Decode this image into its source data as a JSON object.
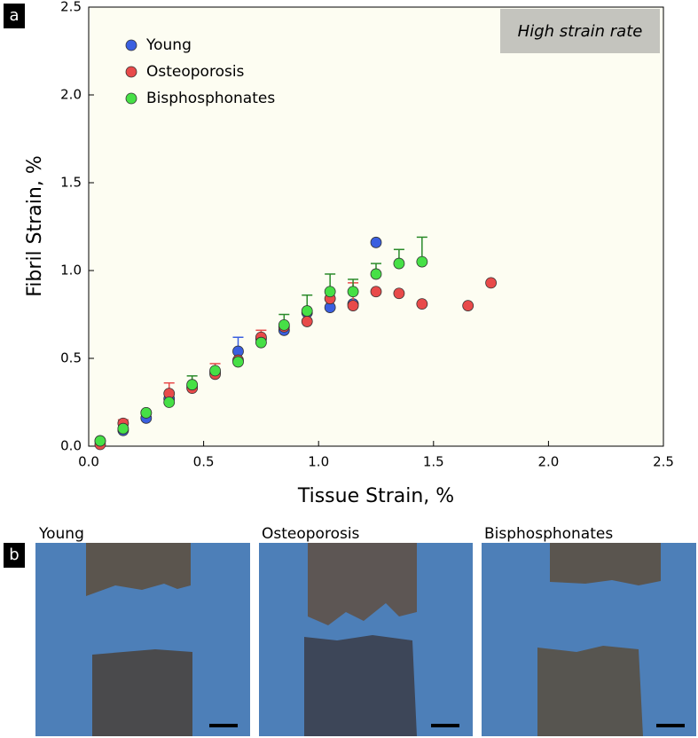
{
  "chart_data": {
    "type": "scatter",
    "panel_label": "a",
    "annotation": "High strain rate",
    "x_label": "Tissue Strain, %",
    "y_label": "Fibril Strain, %",
    "xlim": [
      0,
      2.5
    ],
    "ylim": [
      0,
      2.5
    ],
    "xticks": [
      {
        "value": 0,
        "label": "0.0"
      },
      0.5,
      {
        "value": 1,
        "label": "1.0"
      },
      1.5,
      {
        "value": 2,
        "label": "2.0"
      },
      2.5
    ],
    "yticks": [
      {
        "value": 0,
        "label": "0.0"
      },
      0.5,
      {
        "value": 1,
        "label": "1.0"
      },
      1.5,
      {
        "value": 2,
        "label": "2.0"
      },
      2.5
    ],
    "legend": "top-left",
    "series": [
      {
        "name": "Young",
        "color": "#3a5fe0",
        "x": [
          0.05,
          0.15,
          0.25,
          0.35,
          0.45,
          0.55,
          0.65,
          0.75,
          0.85,
          0.95,
          1.05,
          1.15,
          1.25
        ],
        "values": [
          0.03,
          0.09,
          0.16,
          0.27,
          0.34,
          0.42,
          0.54,
          0.61,
          0.66,
          0.76,
          0.79,
          0.81,
          1.16
        ],
        "errors": [
          null,
          null,
          null,
          null,
          null,
          null,
          0.08,
          null,
          null,
          null,
          null,
          null,
          null
        ]
      },
      {
        "name": "Osteoporosis",
        "color": "#e84a4a",
        "x": [
          0.05,
          0.15,
          0.25,
          0.35,
          0.45,
          0.55,
          0.65,
          0.75,
          0.85,
          0.95,
          1.05,
          1.15,
          1.25,
          1.35,
          1.45,
          1.65,
          1.75
        ],
        "values": [
          0.01,
          0.13,
          0.19,
          0.3,
          0.33,
          0.41,
          0.49,
          0.62,
          0.68,
          0.71,
          0.84,
          0.8,
          0.88,
          0.87,
          0.81,
          0.8,
          0.93
        ],
        "errors": [
          null,
          0.02,
          null,
          0.06,
          null,
          0.06,
          null,
          0.04,
          null,
          null,
          null,
          0.13,
          null,
          null,
          null,
          null,
          null
        ]
      },
      {
        "name": "Bisphosphonates",
        "color": "#46e046",
        "x": [
          0.05,
          0.15,
          0.25,
          0.35,
          0.45,
          0.55,
          0.65,
          0.75,
          0.85,
          0.95,
          1.05,
          1.15,
          1.25,
          1.35,
          1.45
        ],
        "values": [
          0.03,
          0.1,
          0.19,
          0.25,
          0.35,
          0.43,
          0.48,
          0.59,
          0.69,
          0.77,
          0.88,
          0.88,
          0.98,
          1.04,
          1.05
        ],
        "errors": [
          null,
          null,
          null,
          null,
          0.05,
          null,
          null,
          null,
          0.06,
          0.09,
          0.1,
          0.07,
          0.06,
          0.08,
          0.14
        ]
      }
    ]
  },
  "panel_b": {
    "panel_label": "b",
    "captions": [
      "Young",
      "Osteoporosis",
      "Bisphosphonates"
    ]
  }
}
